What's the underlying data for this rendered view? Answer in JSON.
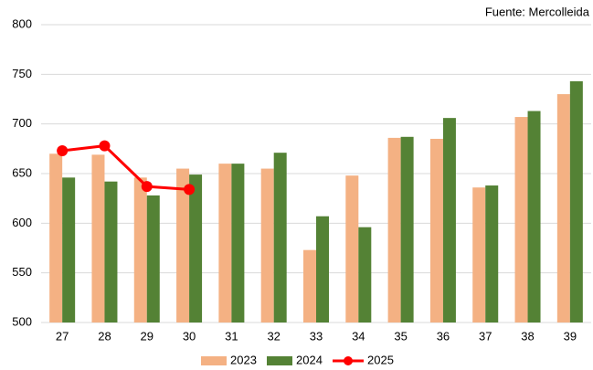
{
  "chart_data": {
    "type": "bar_line",
    "annotation": "Fuente: Mercolleida",
    "categories": [
      "27",
      "28",
      "29",
      "30",
      "31",
      "32",
      "33",
      "34",
      "35",
      "36",
      "37",
      "38",
      "39"
    ],
    "series": [
      {
        "name": "2023",
        "type": "bar",
        "color": "#f4b183",
        "values": [
          670,
          669,
          646,
          655,
          660,
          655,
          573,
          648,
          686,
          685,
          636,
          707,
          730
        ]
      },
      {
        "name": "2024",
        "type": "bar",
        "color": "#548235",
        "values": [
          646,
          642,
          628,
          649,
          660,
          671,
          607,
          596,
          687,
          706,
          638,
          713,
          743
        ]
      },
      {
        "name": "2025",
        "type": "line",
        "color": "#ff0000",
        "values": [
          673,
          678,
          637,
          634,
          null,
          null,
          null,
          null,
          null,
          null,
          null,
          null,
          null
        ]
      }
    ],
    "ylim": [
      500,
      800
    ],
    "yticks": [
      500,
      550,
      600,
      650,
      700,
      750,
      800
    ],
    "grid": true,
    "legend": "bottom"
  }
}
